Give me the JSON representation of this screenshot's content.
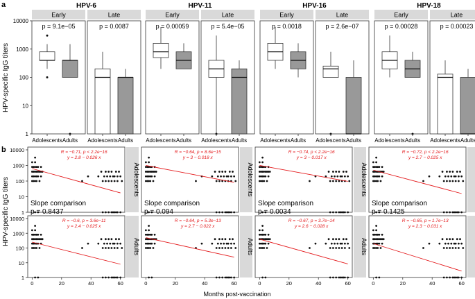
{
  "chart_data": {
    "type": "figure",
    "panel_a": {
      "label": "a",
      "type": "boxplot",
      "ylabel": "HPV-specific IgG titers",
      "yscale": "log10",
      "ylim": [
        1,
        10000
      ],
      "yticks": [
        1,
        10,
        100,
        1000,
        10000
      ],
      "ytick_labels": [
        "1",
        "10",
        "100",
        "1000",
        "10000"
      ],
      "xcategories": [
        "Adolescents",
        "Adults"
      ],
      "facet_cols": [
        "Early",
        "Late"
      ],
      "fill_colors": {
        "Adolescents": "#ffffff",
        "Adults": "#999999"
      },
      "groups": [
        {
          "name": "HPV-6",
          "early": {
            "p_label": "p = 9.1e−05",
            "boxes": [
              {
                "min": 200,
                "q1": 400,
                "median": 400,
                "q3": 800,
                "max": 1500,
                "outliers": [
                  100,
                  3000
                ]
              },
              {
                "min": 100,
                "q1": 100,
                "median": 400,
                "q3": 400,
                "max": 1500,
                "outliers": [
                  1
                ]
              }
            ]
          },
          "late": {
            "p_label": "p = 0.0087",
            "boxes": [
              {
                "min": 1,
                "q1": 1,
                "median": 100,
                "q3": 200,
                "max": 800,
                "outliers": []
              },
              {
                "min": 1,
                "q1": 1,
                "median": 100,
                "q3": 100,
                "max": 200,
                "outliers": []
              }
            ]
          }
        },
        {
          "name": "HPV-11",
          "early": {
            "p_label": "p = 0.00059",
            "boxes": [
              {
                "min": 200,
                "q1": 500,
                "median": 800,
                "q3": 1600,
                "max": 6000,
                "outliers": []
              },
              {
                "min": 200,
                "q1": 200,
                "median": 400,
                "q3": 800,
                "max": 1600,
                "outliers": []
              }
            ]
          },
          "late": {
            "p_label": "p = 5.4e−05",
            "boxes": [
              {
                "min": 1,
                "q1": 100,
                "median": 200,
                "q3": 400,
                "max": 3000,
                "outliers": [
                  1
                ]
              },
              {
                "min": 1,
                "q1": 1,
                "median": 100,
                "q3": 200,
                "max": 400,
                "outliers": []
              }
            ]
          }
        },
        {
          "name": "HPV-16",
          "early": {
            "p_label": "p = 0.0018",
            "boxes": [
              {
                "min": 200,
                "q1": 400,
                "median": 800,
                "q3": 1600,
                "max": 6000,
                "outliers": []
              },
              {
                "min": 100,
                "q1": 200,
                "median": 400,
                "q3": 800,
                "max": 1600,
                "outliers": []
              }
            ]
          },
          "late": {
            "p_label": "p = 2.6e−07",
            "boxes": [
              {
                "min": 100,
                "q1": 100,
                "median": 200,
                "q3": 250,
                "max": 800,
                "outliers": [
                  1
                ]
              },
              {
                "min": 1,
                "q1": 1,
                "median": 1,
                "q3": 100,
                "max": 400,
                "outliers": []
              }
            ]
          }
        },
        {
          "name": "HPV-18",
          "early": {
            "p_label": "p = 0.00028",
            "boxes": [
              {
                "min": 100,
                "q1": 200,
                "median": 400,
                "q3": 800,
                "max": 3000,
                "outliers": []
              },
              {
                "min": 100,
                "q1": 100,
                "median": 200,
                "q3": 400,
                "max": 800,
                "outliers": [
                  1
                ]
              }
            ]
          },
          "late": {
            "p_label": "p = 0.00023",
            "boxes": [
              {
                "min": 1,
                "q1": 1,
                "median": 100,
                "q3": 130,
                "max": 400,
                "outliers": []
              },
              {
                "min": 1,
                "q1": 1,
                "median": 1,
                "q3": 100,
                "max": 200,
                "outliers": []
              }
            ]
          }
        }
      ]
    },
    "panel_b": {
      "label": "b",
      "type": "scatter",
      "ylabel": "HPV-specific IgG titers",
      "xlabel": "Months post-vaccination",
      "yscale": "log10",
      "ylim": [
        1,
        10000
      ],
      "yticks": [
        1,
        10,
        100,
        1000,
        10000
      ],
      "ytick_labels": [
        "1",
        "10",
        "100",
        "1000",
        "10000"
      ],
      "xlim": [
        -3,
        63
      ],
      "xticks": [
        0,
        20,
        40,
        60
      ],
      "xtick_labels": [
        "0",
        "20",
        "40",
        "60"
      ],
      "row_strips": [
        "Adolescents",
        "Adults"
      ],
      "fit_color": "#e41a1c",
      "columns": [
        {
          "slope_label": "Slope comparison",
          "slope_p": "p = 0.8437",
          "rows": [
            {
              "stats": "R = −0.71, p < 2.2e−16",
              "eq": "y = 2.8 − 0.026 x",
              "a": 2.8,
              "b": -0.026
            },
            {
              "stats": "R = −0.6, p = 3.6e−11",
              "eq": "y = 2.4 − 0.025 x",
              "a": 2.4,
              "b": -0.025
            }
          ]
        },
        {
          "slope_label": "Slope comparison",
          "slope_p": "p = 0.094",
          "rows": [
            {
              "stats": "R = −0.64, p = 8.6e−15",
              "eq": "y = 3 − 0.018 x",
              "a": 3.0,
              "b": -0.018
            },
            {
              "stats": "R = −0.64, p = 5.3e−13",
              "eq": "y = 2.7 − 0.022 x",
              "a": 2.7,
              "b": -0.022
            }
          ]
        },
        {
          "slope_label": "Slope comparison",
          "slope_p": "p = 0.0034",
          "rows": [
            {
              "stats": "R = −0.74, p < 2.2e−16",
              "eq": "y = 3 − 0.017 x",
              "a": 3.0,
              "b": -0.017
            },
            {
              "stats": "R = −0.67, p = 3.7e−14",
              "eq": "y = 2.6 − 0.028 x",
              "a": 2.6,
              "b": -0.028
            }
          ]
        },
        {
          "slope_label": "Slope comparison",
          "slope_p": "p = 0.1425",
          "rows": [
            {
              "stats": "R = −0.72, p < 2.2e−16",
              "eq": "y = 2.7 − 0.025 x",
              "a": 2.7,
              "b": -0.025
            },
            {
              "stats": "R = −0.65, p = 1.7e−13",
              "eq": "y = 2.3 − 0.031 x",
              "a": 2.3,
              "b": -0.031
            }
          ]
        }
      ],
      "points": [
        [
          0,
          100
        ],
        [
          0,
          200
        ],
        [
          0,
          400
        ],
        [
          0,
          800
        ],
        [
          0,
          1600
        ],
        [
          1,
          100
        ],
        [
          1,
          200
        ],
        [
          1,
          400
        ],
        [
          1,
          800
        ],
        [
          2,
          100
        ],
        [
          2,
          200
        ],
        [
          2,
          400
        ],
        [
          2,
          800
        ],
        [
          2,
          1600
        ],
        [
          2,
          3200
        ],
        [
          3,
          100
        ],
        [
          3,
          200
        ],
        [
          3,
          400
        ],
        [
          3,
          800
        ],
        [
          4,
          200
        ],
        [
          4,
          400
        ],
        [
          4,
          800
        ],
        [
          5,
          100
        ],
        [
          5,
          400
        ],
        [
          6,
          200
        ],
        [
          6,
          400
        ],
        [
          6,
          800
        ],
        [
          7,
          400
        ],
        [
          2,
          1
        ],
        [
          4,
          1
        ],
        [
          34,
          100
        ],
        [
          38,
          200
        ],
        [
          45,
          200
        ],
        [
          47,
          400
        ],
        [
          48,
          100
        ],
        [
          49,
          200
        ],
        [
          50,
          100
        ],
        [
          50,
          400
        ],
        [
          51,
          200
        ],
        [
          52,
          100
        ],
        [
          52,
          400
        ],
        [
          53,
          200
        ],
        [
          54,
          100
        ],
        [
          54,
          400
        ],
        [
          55,
          200
        ],
        [
          56,
          100
        ],
        [
          56,
          200
        ],
        [
          57,
          400
        ],
        [
          58,
          100
        ],
        [
          58,
          200
        ],
        [
          59,
          400
        ],
        [
          60,
          200
        ],
        [
          61,
          100
        ],
        [
          48,
          1
        ],
        [
          50,
          1
        ],
        [
          52,
          1
        ],
        [
          54,
          1
        ],
        [
          55,
          1
        ],
        [
          56,
          1
        ],
        [
          57,
          1
        ],
        [
          58,
          1
        ],
        [
          60,
          1
        ]
      ]
    }
  }
}
